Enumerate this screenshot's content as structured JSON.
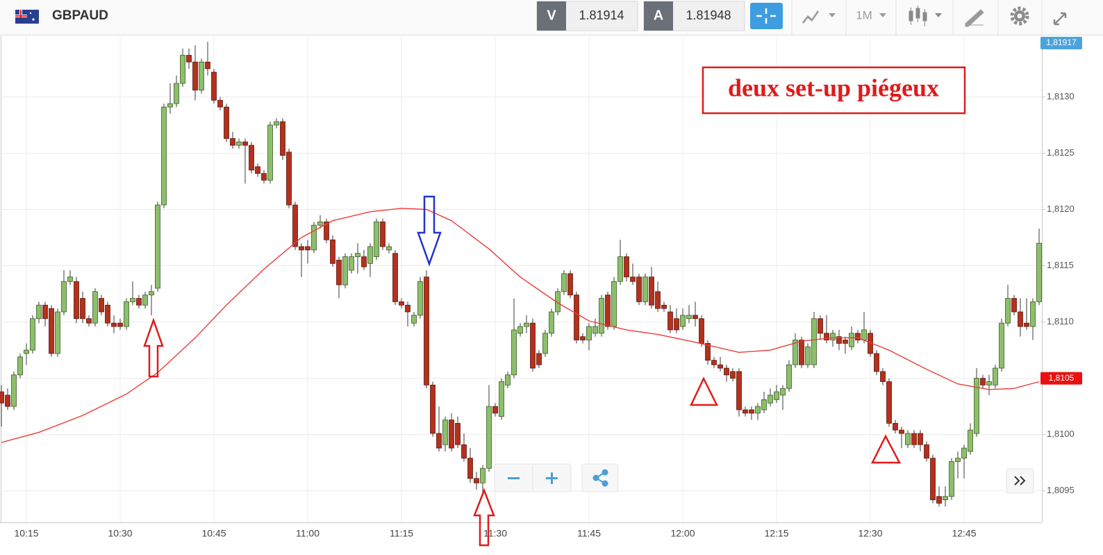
{
  "toolbar": {
    "symbol": "GBPAUD",
    "bid_label": "V",
    "bid": "1.81914",
    "ask_label": "A",
    "ask": "1.81948",
    "timeframe": "1M"
  },
  "chart_data": {
    "type": "candlestick",
    "annotation": "deux set-up piégeux",
    "up_color": "#8cbf6a",
    "down_color": "#b3311d",
    "price_tags": [
      {
        "label": "1,81917",
        "color": "#4ba3dc"
      },
      {
        "label": "1,8105",
        "color": "#e8110f"
      }
    ],
    "ylim": [
      1.80922,
      1.81354
    ],
    "yticks": [
      {
        "value": 1.8095,
        "label": "1,8095"
      },
      {
        "value": 1.81,
        "label": "1,8100"
      },
      {
        "value": 1.8105,
        "label": "1,8105"
      },
      {
        "value": 1.811,
        "label": "1,8110"
      },
      {
        "value": 1.8115,
        "label": "1,8115"
      },
      {
        "value": 1.812,
        "label": "1,8120"
      },
      {
        "value": 1.8125,
        "label": "1,8125"
      },
      {
        "value": 1.813,
        "label": "1,8130"
      }
    ],
    "grid": true,
    "categories": [
      null,
      null,
      null,
      null,
      "10:15",
      null,
      null,
      null,
      null,
      null,
      null,
      null,
      null,
      null,
      null,
      null,
      null,
      null,
      null,
      "10:30",
      null,
      null,
      null,
      null,
      null,
      null,
      null,
      null,
      null,
      null,
      null,
      null,
      null,
      null,
      "10:45",
      null,
      null,
      null,
      null,
      null,
      null,
      null,
      null,
      null,
      null,
      null,
      null,
      null,
      null,
      "11:00",
      null,
      null,
      null,
      null,
      null,
      null,
      null,
      null,
      null,
      null,
      null,
      null,
      null,
      null,
      "11:15",
      null,
      null,
      null,
      null,
      null,
      null,
      null,
      null,
      null,
      null,
      null,
      null,
      null,
      null,
      "11:30",
      null,
      null,
      null,
      null,
      null,
      null,
      null,
      null,
      null,
      null,
      null,
      null,
      null,
      null,
      "11:45",
      null,
      null,
      null,
      null,
      null,
      null,
      null,
      null,
      null,
      null,
      null,
      null,
      null,
      null,
      "12:00",
      null,
      null,
      null,
      null,
      null,
      null,
      null,
      null,
      null,
      null,
      null,
      null,
      null,
      null,
      "12:15",
      null,
      null,
      null,
      null,
      null,
      null,
      null,
      null,
      null,
      null,
      null,
      null,
      null,
      null,
      "12:30",
      null,
      null,
      null,
      null,
      null,
      null,
      null,
      null,
      null,
      null,
      null,
      null,
      null,
      null,
      "12:45",
      null,
      null,
      null,
      null,
      null,
      null,
      null,
      null,
      null,
      null,
      null,
      null
    ],
    "candles": [
      [
        1.81038,
        1.81044,
        1.81007,
        1.81028
      ],
      [
        1.81035,
        1.81041,
        1.81022,
        1.81025
      ],
      [
        1.81025,
        1.81056,
        1.81022,
        1.81053
      ],
      [
        1.81053,
        1.81072,
        1.8105,
        1.81069
      ],
      [
        1.81072,
        1.81081,
        1.81062,
        1.81075
      ],
      [
        1.81075,
        1.81106,
        1.81072,
        1.81103
      ],
      [
        1.81103,
        1.81118,
        1.81099,
        1.81115
      ],
      [
        1.81115,
        1.81118,
        1.81096,
        1.81103
      ],
      [
        1.81112,
        1.81115,
        1.81069,
        1.81072
      ],
      [
        1.81072,
        1.81112,
        1.81069,
        1.81109
      ],
      [
        1.81109,
        1.81146,
        1.81106,
        1.81136
      ],
      [
        1.81136,
        1.81146,
        1.81133,
        1.8114
      ],
      [
        1.81136,
        1.8114,
        1.81099,
        1.81103
      ],
      [
        1.81121,
        1.81127,
        1.81099,
        1.81103
      ],
      [
        1.81103,
        1.81106,
        1.81096,
        1.81099
      ],
      [
        1.81099,
        1.8113,
        1.81096,
        1.81127
      ],
      [
        1.81121,
        1.81124,
        1.81106,
        1.81109
      ],
      [
        1.81115,
        1.81118,
        1.81096,
        1.81099
      ],
      [
        1.81099,
        1.81106,
        1.8109,
        1.81096
      ],
      [
        1.81099,
        1.81103,
        1.81093,
        1.81096
      ],
      [
        1.81096,
        1.81121,
        1.81093,
        1.81118
      ],
      [
        1.81118,
        1.81136,
        1.81115,
        1.81121
      ],
      [
        1.81121,
        1.81124,
        1.81112,
        1.81115
      ],
      [
        1.81115,
        1.81127,
        1.81112,
        1.81124
      ],
      [
        1.81124,
        1.81133,
        1.81106,
        1.81127
      ],
      [
        1.8113,
        1.81207,
        1.81127,
        1.81204
      ],
      [
        1.81204,
        1.81294,
        1.81201,
        1.81291
      ],
      [
        1.81291,
        1.81312,
        1.81285,
        1.81294
      ],
      [
        1.81294,
        1.81319,
        1.81291,
        1.81312
      ],
      [
        1.81312,
        1.81343,
        1.81309,
        1.81337
      ],
      [
        1.81337,
        1.81343,
        1.81325,
        1.81331
      ],
      [
        1.81331,
        1.81346,
        1.81297,
        1.81306
      ],
      [
        1.81306,
        1.81334,
        1.81303,
        1.81331
      ],
      [
        1.81331,
        1.81349,
        1.81319,
        1.81325
      ],
      [
        1.81322,
        1.81325,
        1.81294,
        1.81297
      ],
      [
        1.81297,
        1.813,
        1.81288,
        1.81291
      ],
      [
        1.81291,
        1.81294,
        1.8126,
        1.81263
      ],
      [
        1.81263,
        1.81269,
        1.81254,
        1.81257
      ],
      [
        1.81257,
        1.81263,
        1.81254,
        1.8126
      ],
      [
        1.8126,
        1.81263,
        1.81223,
        1.81257
      ],
      [
        1.81257,
        1.8126,
        1.81232,
        1.81235
      ],
      [
        1.81238,
        1.81241,
        1.81229,
        1.81232
      ],
      [
        1.81232,
        1.81235,
        1.81223,
        1.81226
      ],
      [
        1.81226,
        1.81278,
        1.81223,
        1.81275
      ],
      [
        1.81275,
        1.81281,
        1.81272,
        1.81278
      ],
      [
        1.81278,
        1.81281,
        1.81244,
        1.81248
      ],
      [
        1.81251,
        1.81254,
        1.81201,
        1.81204
      ],
      [
        1.81204,
        1.81207,
        1.81164,
        1.81167
      ],
      [
        1.81167,
        1.8117,
        1.8114,
        1.81164
      ],
      [
        1.81167,
        1.81173,
        1.81152,
        1.81164
      ],
      [
        1.81164,
        1.81189,
        1.81161,
        1.81186
      ],
      [
        1.81186,
        1.81195,
        1.81183,
        1.81189
      ],
      [
        1.81189,
        1.81192,
        1.8117,
        1.81173
      ],
      [
        1.81173,
        1.81177,
        1.81149,
        1.81152
      ],
      [
        1.81155,
        1.81158,
        1.81121,
        1.81133
      ],
      [
        1.81133,
        1.81161,
        1.8113,
        1.81158
      ],
      [
        1.81146,
        1.81161,
        1.81143,
        1.81158
      ],
      [
        1.81158,
        1.8117,
        1.81143,
        1.81161
      ],
      [
        1.81158,
        1.81164,
        1.81146,
        1.81149
      ],
      [
        1.81152,
        1.8117,
        1.8114,
        1.81167
      ],
      [
        1.81158,
        1.81192,
        1.81155,
        1.81189
      ],
      [
        1.81189,
        1.81192,
        1.81164,
        1.81167
      ],
      [
        1.81164,
        1.8117,
        1.81161,
        1.81167
      ],
      [
        1.81161,
        1.81164,
        1.81115,
        1.81118
      ],
      [
        1.81118,
        1.81121,
        1.81112,
        1.81115
      ],
      [
        1.81115,
        1.81118,
        1.81096,
        1.81109
      ],
      [
        1.81099,
        1.81109,
        1.81096,
        1.81106
      ],
      [
        1.81106,
        1.8114,
        1.81103,
        1.81136
      ],
      [
        1.8114,
        1.81146,
        1.81041,
        1.81044
      ],
      [
        1.81044,
        1.81047,
        1.80998,
        1.81001
      ],
      [
        1.81001,
        1.81025,
        1.80985,
        1.80988
      ],
      [
        1.80991,
        1.81016,
        1.80985,
        1.81013
      ],
      [
        1.81013,
        1.81019,
        1.80985,
        1.80988
      ],
      [
        1.8101,
        1.81016,
        1.80988,
        1.80991
      ],
      [
        1.80991,
        1.81001,
        1.80976,
        1.80979
      ],
      [
        1.80979,
        1.80988,
        1.80957,
        1.80961
      ],
      [
        1.80961,
        1.80967,
        1.80951,
        1.80957
      ],
      [
        1.80957,
        1.80973,
        1.80948,
        1.8097
      ],
      [
        1.8097,
        1.81044,
        1.80967,
        1.81025
      ],
      [
        1.81025,
        1.81028,
        1.81016,
        1.81019
      ],
      [
        1.81016,
        1.8105,
        1.81013,
        1.81047
      ],
      [
        1.81044,
        1.81056,
        1.81041,
        1.81053
      ],
      [
        1.81053,
        1.81121,
        1.8105,
        1.81093
      ],
      [
        1.8109,
        1.81099,
        1.81087,
        1.81096
      ],
      [
        1.81096,
        1.81106,
        1.8109,
        1.81099
      ],
      [
        1.81099,
        1.81103,
        1.81056,
        1.81059
      ],
      [
        1.81072,
        1.81075,
        1.81059,
        1.81062
      ],
      [
        1.81072,
        1.81093,
        1.81069,
        1.8109
      ],
      [
        1.8109,
        1.81112,
        1.81087,
        1.81109
      ],
      [
        1.81109,
        1.8113,
        1.81106,
        1.81127
      ],
      [
        1.81127,
        1.81146,
        1.81124,
        1.81143
      ],
      [
        1.81143,
        1.81146,
        1.81121,
        1.81124
      ],
      [
        1.81124,
        1.81127,
        1.81081,
        1.81084
      ],
      [
        1.81087,
        1.8109,
        1.81081,
        1.81084
      ],
      [
        1.81084,
        1.81099,
        1.81075,
        1.81096
      ],
      [
        1.8109,
        1.81103,
        1.81087,
        1.81096
      ],
      [
        1.8109,
        1.81124,
        1.81087,
        1.81121
      ],
      [
        1.81124,
        1.81127,
        1.81093,
        1.81096
      ],
      [
        1.81096,
        1.8114,
        1.81093,
        1.81136
      ],
      [
        1.81136,
        1.81173,
        1.81133,
        1.81158
      ],
      [
        1.81158,
        1.81161,
        1.81136,
        1.8114
      ],
      [
        1.8114,
        1.81152,
        1.81133,
        1.81136
      ],
      [
        1.8114,
        1.81143,
        1.81115,
        1.81118
      ],
      [
        1.81118,
        1.81143,
        1.81115,
        1.8114
      ],
      [
        1.8114,
        1.81149,
        1.81112,
        1.81115
      ],
      [
        1.81127,
        1.81136,
        1.81109,
        1.81112
      ],
      [
        1.81115,
        1.81118,
        1.81109,
        1.81112
      ],
      [
        1.81109,
        1.81115,
        1.8109,
        1.81093
      ],
      [
        1.81103,
        1.81112,
        1.8109,
        1.81093
      ],
      [
        1.81096,
        1.81112,
        1.81093,
        1.81106
      ],
      [
        1.81103,
        1.81115,
        1.81099,
        1.81106
      ],
      [
        1.81106,
        1.81118,
        1.81096,
        1.81103
      ],
      [
        1.81103,
        1.81106,
        1.81078,
        1.81081
      ],
      [
        1.81081,
        1.81084,
        1.81062,
        1.81066
      ],
      [
        1.81066,
        1.81069,
        1.81059,
        1.81062
      ],
      [
        1.81062,
        1.81069,
        1.81056,
        1.81059
      ],
      [
        1.81059,
        1.81062,
        1.81047,
        1.81053
      ],
      [
        1.81056,
        1.81059,
        1.81047,
        1.8105
      ],
      [
        1.81056,
        1.81059,
        1.81016,
        1.81022
      ],
      [
        1.81022,
        1.81025,
        1.81016,
        1.81019
      ],
      [
        1.81022,
        1.81025,
        1.81013,
        1.81019
      ],
      [
        1.81019,
        1.81028,
        1.81013,
        1.81025
      ],
      [
        1.81022,
        1.81038,
        1.81019,
        1.81031
      ],
      [
        1.81028,
        1.81041,
        1.81025,
        1.81035
      ],
      [
        1.81031,
        1.81044,
        1.81028,
        1.81038
      ],
      [
        1.81035,
        1.81044,
        1.81022,
        1.81041
      ],
      [
        1.81041,
        1.81066,
        1.81038,
        1.81062
      ],
      [
        1.81062,
        1.8109,
        1.81059,
        1.81084
      ],
      [
        1.81084,
        1.81087,
        1.81059,
        1.81062
      ],
      [
        1.81062,
        1.81081,
        1.81059,
        1.81078
      ],
      [
        1.81062,
        1.81109,
        1.81059,
        1.81103
      ],
      [
        1.81103,
        1.81106,
        1.81084,
        1.8109
      ],
      [
        1.8109,
        1.81106,
        1.81081,
        1.81084
      ],
      [
        1.81084,
        1.81093,
        1.81078,
        1.8109
      ],
      [
        1.81087,
        1.81093,
        1.81075,
        1.81081
      ],
      [
        1.81084,
        1.81087,
        1.81072,
        1.81081
      ],
      [
        1.81078,
        1.81096,
        1.81075,
        1.8109
      ],
      [
        1.8109,
        1.81093,
        1.81081,
        1.81084
      ],
      [
        1.81084,
        1.81109,
        1.81081,
        1.81093
      ],
      [
        1.8109,
        1.81093,
        1.81069,
        1.81072
      ],
      [
        1.81072,
        1.81075,
        1.81053,
        1.81056
      ],
      [
        1.81056,
        1.81059,
        1.81044,
        1.81047
      ],
      [
        1.81047,
        1.8105,
        1.81007,
        1.8101
      ],
      [
        1.8101,
        1.81013,
        1.81001,
        1.81004
      ],
      [
        1.81004,
        1.81007,
        1.80988,
        1.81001
      ],
      [
        1.80991,
        1.81004,
        1.80988,
        1.81001
      ],
      [
        1.81001,
        1.81004,
        1.80988,
        1.80991
      ],
      [
        1.81001,
        1.81004,
        1.80985,
        1.80991
      ],
      [
        1.80991,
        1.80994,
        1.80976,
        1.80979
      ],
      [
        1.80979,
        1.80982,
        1.80939,
        1.80942
      ],
      [
        1.80945,
        1.80954,
        1.80936,
        1.80939
      ],
      [
        1.80942,
        1.80954,
        1.80936,
        1.80945
      ],
      [
        1.80945,
        1.80979,
        1.80942,
        1.80976
      ],
      [
        1.80976,
        1.80985,
        1.80961,
        1.80979
      ],
      [
        1.80979,
        1.80991,
        1.80961,
        1.80988
      ],
      [
        1.80985,
        1.8101,
        1.80982,
        1.81004
      ],
      [
        1.81001,
        1.81059,
        1.80998,
        1.8105
      ],
      [
        1.8105,
        1.81053,
        1.81041,
        1.81044
      ],
      [
        1.81044,
        1.81053,
        1.81035,
        1.81047
      ],
      [
        1.81044,
        1.81062,
        1.81041,
        1.81059
      ],
      [
        1.81059,
        1.81103,
        1.81056,
        1.81099
      ],
      [
        1.81099,
        1.81133,
        1.81096,
        1.81121
      ],
      [
        1.81121,
        1.81124,
        1.81106,
        1.81109
      ],
      [
        1.81109,
        1.81121,
        1.81087,
        1.81096
      ],
      [
        1.81099,
        1.81121,
        1.81093,
        1.81096
      ],
      [
        1.81096,
        1.81121,
        1.81084,
        1.81118
      ],
      [
        1.81118,
        1.81183,
        1.81115,
        1.8117
      ]
    ],
    "ma": {
      "color": "#ee3b36",
      "x": [
        0,
        6,
        13,
        20,
        25,
        31,
        36,
        42,
        48,
        53,
        59,
        64,
        68,
        72,
        78,
        83,
        89,
        94,
        100,
        105,
        111,
        118,
        123,
        128,
        133,
        137,
        142,
        148,
        153,
        158,
        162,
        166
      ],
      "values": [
        1.80993,
        1.81002,
        1.81017,
        1.81036,
        1.81055,
        1.81086,
        1.81115,
        1.81147,
        1.81175,
        1.8119,
        1.81198,
        1.81201,
        1.812,
        1.8119,
        1.81165,
        1.8114,
        1.81117,
        1.81101,
        1.81093,
        1.81089,
        1.81082,
        1.81073,
        1.81075,
        1.81083,
        1.81086,
        1.81086,
        1.81075,
        1.81058,
        1.81045,
        1.8104,
        1.81041,
        1.81047
      ]
    }
  }
}
